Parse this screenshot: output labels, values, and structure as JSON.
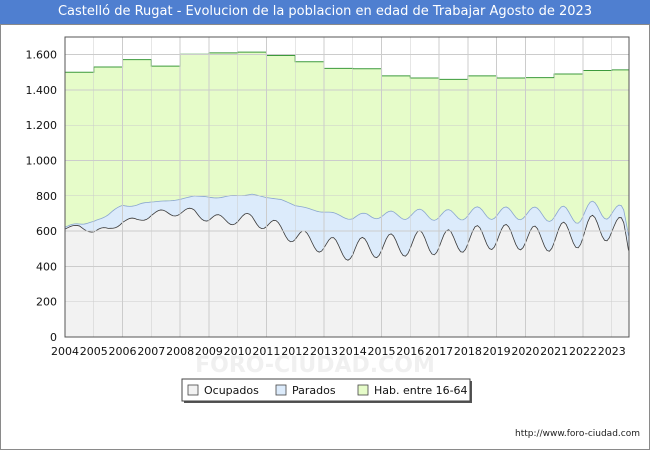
{
  "header": {
    "title": "Castelló de Rugat - Evolucion de la poblacion en edad de Trabajar Agosto de 2023"
  },
  "footer": {
    "url": "http://www.foro-ciudad.com"
  },
  "watermark": "FORO-CIUDAD.COM",
  "colors": {
    "title_bg": "#4f7fd0",
    "hab_fill": "#e6fcc9",
    "hab_line": "#3c9a3c",
    "parados_fill": "#dcebfb",
    "parados_line": "#8aa6cf",
    "ocupados_fill": "#f2f2f2",
    "ocupados_line": "#3a3a3a",
    "grid": "#cccccc"
  },
  "chart_data": {
    "type": "area",
    "title": "Castelló de Rugat - Evolucion de la poblacion en edad de Trabajar Agosto de 2023",
    "xlabel": "",
    "ylabel": "",
    "xlim": [
      2004,
      2023.6
    ],
    "ylim": [
      0,
      1700
    ],
    "y_ticks": [
      0,
      200,
      400,
      600,
      800,
      1000,
      1200,
      1400,
      1600
    ],
    "y_tick_labels": [
      "0",
      "200",
      "400",
      "600",
      "800",
      "1.000",
      "1.200",
      "1.400",
      "1.600"
    ],
    "x_ticks": [
      2004,
      2005,
      2006,
      2007,
      2008,
      2009,
      2010,
      2011,
      2012,
      2013,
      2014,
      2015,
      2016,
      2017,
      2018,
      2019,
      2020,
      2021,
      2022,
      2023
    ],
    "x_tick_labels": [
      "2004",
      "2005",
      "2006",
      "2007",
      "2008",
      "2009",
      "2010",
      "2011",
      "2012",
      "2013",
      "2014",
      "2015",
      "2016",
      "2017",
      "2018",
      "2019",
      "2020",
      "2021",
      "2022",
      "2023"
    ],
    "grid": true,
    "legend": {
      "placement": "bottom",
      "items": [
        {
          "label": "Ocupados",
          "color": "#f2f2f2"
        },
        {
          "label": "Parados",
          "color": "#dcebfb"
        },
        {
          "label": "Hab. entre 16-64",
          "color": "#e6fcc9"
        }
      ]
    },
    "series": [
      {
        "name": "Hab. entre 16-64",
        "step": true,
        "years": [
          2004,
          2005,
          2006,
          2007,
          2008,
          2009,
          2010,
          2011,
          2012,
          2013,
          2014,
          2015,
          2016,
          2017,
          2018,
          2019,
          2020,
          2021,
          2022,
          2023
        ],
        "values": [
          1500,
          1530,
          1572,
          1535,
          1602,
          1610,
          1614,
          1595,
          1560,
          1522,
          1520,
          1480,
          1468,
          1460,
          1480,
          1468,
          1470,
          1490,
          1510,
          1514
        ]
      },
      {
        "name": "Ocupados",
        "annual_anchors": [
          [
            2004.0,
            615
          ],
          [
            2004.5,
            625
          ],
          [
            2005.0,
            600
          ],
          [
            2005.5,
            610
          ],
          [
            2006.0,
            655
          ],
          [
            2006.5,
            660
          ],
          [
            2007.0,
            695
          ],
          [
            2007.5,
            705
          ],
          [
            2008.0,
            705
          ],
          [
            2008.5,
            710
          ],
          [
            2009.0,
            670
          ],
          [
            2009.5,
            665
          ],
          [
            2010.0,
            665
          ],
          [
            2010.5,
            670
          ],
          [
            2011.0,
            640
          ],
          [
            2011.5,
            610
          ],
          [
            2012.0,
            570
          ],
          [
            2012.5,
            545
          ],
          [
            2013.0,
            525
          ],
          [
            2013.5,
            500
          ],
          [
            2014.0,
            490
          ],
          [
            2014.5,
            510
          ],
          [
            2015.0,
            515
          ],
          [
            2015.5,
            520
          ],
          [
            2016.0,
            530
          ],
          [
            2016.5,
            535
          ],
          [
            2017.0,
            535
          ],
          [
            2017.5,
            540
          ],
          [
            2018.0,
            555
          ],
          [
            2018.5,
            565
          ],
          [
            2019.0,
            565
          ],
          [
            2019.5,
            570
          ],
          [
            2020.0,
            560
          ],
          [
            2020.5,
            555
          ],
          [
            2021.0,
            565
          ],
          [
            2021.5,
            575
          ],
          [
            2022.0,
            595
          ],
          [
            2022.5,
            615
          ],
          [
            2023.0,
            625
          ],
          [
            2023.4,
            600
          ],
          [
            2023.6,
            490
          ]
        ],
        "seasonal_amplitude": [
          [
            2004,
            10
          ],
          [
            2006,
            15
          ],
          [
            2008,
            20
          ],
          [
            2010,
            30
          ],
          [
            2012,
            45
          ],
          [
            2014,
            60
          ],
          [
            2016,
            70
          ],
          [
            2018,
            70
          ],
          [
            2020,
            70
          ],
          [
            2022,
            85
          ],
          [
            2023.6,
            70
          ]
        ]
      },
      {
        "name": "Parados",
        "description": "stacked on top of Ocupados",
        "annual_anchors": [
          [
            2004.0,
            10
          ],
          [
            2004.5,
            12
          ],
          [
            2005.0,
            55
          ],
          [
            2005.5,
            85
          ],
          [
            2006.0,
            88
          ],
          [
            2006.5,
            90
          ],
          [
            2007.0,
            70
          ],
          [
            2007.5,
            65
          ],
          [
            2008.0,
            75
          ],
          [
            2008.5,
            90
          ],
          [
            2009.0,
            120
          ],
          [
            2009.5,
            130
          ],
          [
            2010.0,
            135
          ],
          [
            2010.5,
            140
          ],
          [
            2011.0,
            150
          ],
          [
            2011.5,
            170
          ],
          [
            2012.0,
            175
          ],
          [
            2012.5,
            180
          ],
          [
            2013.0,
            185
          ],
          [
            2013.5,
            190
          ],
          [
            2014.0,
            185
          ],
          [
            2014.5,
            180
          ],
          [
            2015.0,
            175
          ],
          [
            2015.5,
            170
          ],
          [
            2016.0,
            165
          ],
          [
            2016.5,
            160
          ],
          [
            2017.0,
            155
          ],
          [
            2017.5,
            150
          ],
          [
            2018.0,
            145
          ],
          [
            2018.5,
            140
          ],
          [
            2019.0,
            135
          ],
          [
            2019.5,
            130
          ],
          [
            2020.0,
            140
          ],
          [
            2020.5,
            145
          ],
          [
            2021.0,
            130
          ],
          [
            2021.5,
            115
          ],
          [
            2022.0,
            110
          ],
          [
            2022.5,
            105
          ],
          [
            2023.0,
            95
          ],
          [
            2023.4,
            90
          ],
          [
            2023.6,
            80
          ]
        ]
      }
    ]
  }
}
